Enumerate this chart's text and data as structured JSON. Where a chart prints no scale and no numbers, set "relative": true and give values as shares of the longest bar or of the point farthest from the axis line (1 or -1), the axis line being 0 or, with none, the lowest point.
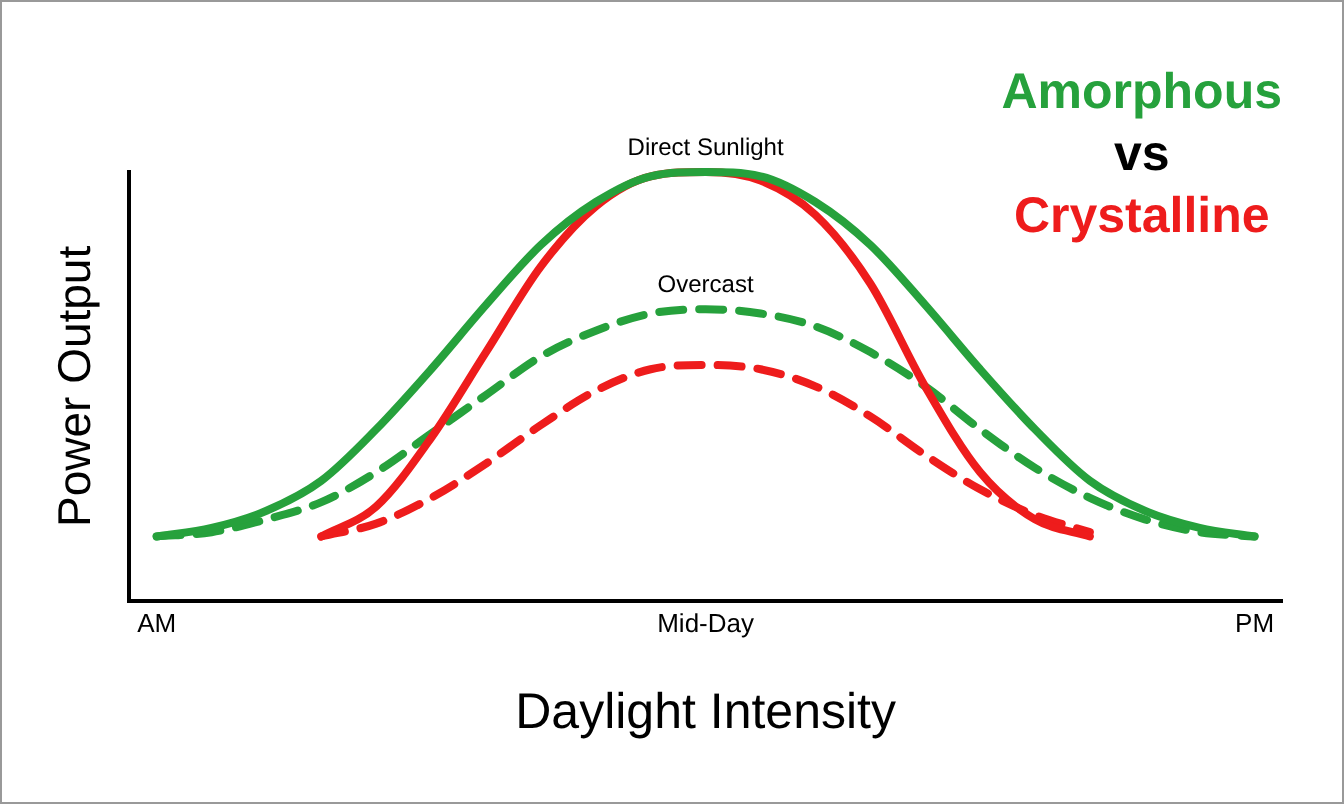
{
  "chart_data": {
    "type": "line",
    "relative": true,
    "xlabel": "Daylight Intensity",
    "ylabel": "Power Output",
    "categories": [
      "AM",
      null,
      null,
      null,
      null,
      null,
      null,
      null,
      null,
      null,
      "Mid-Day",
      null,
      null,
      null,
      null,
      null,
      null,
      null,
      null,
      null,
      "PM"
    ],
    "series": [
      {
        "name": "Amorphous",
        "color": "#26a13c",
        "line_style": "solid",
        "values": [
          0.15,
          0.17,
          0.21,
          0.28,
          0.4,
          0.54,
          0.69,
          0.83,
          0.93,
          0.99,
          1,
          0.99,
          0.93,
          0.83,
          0.69,
          0.54,
          0.4,
          0.28,
          0.21,
          0.17,
          0.15
        ]
      },
      {
        "name": "Crystalline",
        "color": "#ee1c1c",
        "line_style": "solid",
        "values": [
          null,
          null,
          null,
          0.15,
          0.22,
          0.38,
          0.58,
          0.78,
          0.92,
          0.99,
          1,
          0.98,
          0.9,
          0.74,
          0.5,
          0.3,
          0.19,
          0.15,
          null,
          null,
          null
        ]
      },
      {
        "color": "#26a13c",
        "line_style": "dashed",
        "values": [
          0.15,
          0.16,
          0.19,
          0.23,
          0.3,
          0.39,
          0.48,
          0.57,
          0.63,
          0.67,
          0.68,
          0.67,
          0.64,
          0.58,
          0.5,
          0.4,
          0.31,
          0.24,
          0.19,
          0.16,
          0.15
        ]
      },
      {
        "color": "#ee1c1c",
        "line_style": "dashed",
        "values": [
          null,
          null,
          null,
          0.15,
          0.18,
          0.24,
          0.32,
          0.41,
          0.49,
          0.54,
          0.55,
          0.54,
          0.5,
          0.43,
          0.34,
          0.26,
          0.2,
          0.16,
          null,
          null,
          null
        ]
      }
    ],
    "annotations": [
      {
        "text": "Direct Sunlight",
        "x": "Mid-Day",
        "y": 1
      },
      {
        "text": "Overcast",
        "x": "Mid-Day",
        "y": 0.68
      },
      "vs"
    ],
    "legend": "top right",
    "marker": "none"
  }
}
